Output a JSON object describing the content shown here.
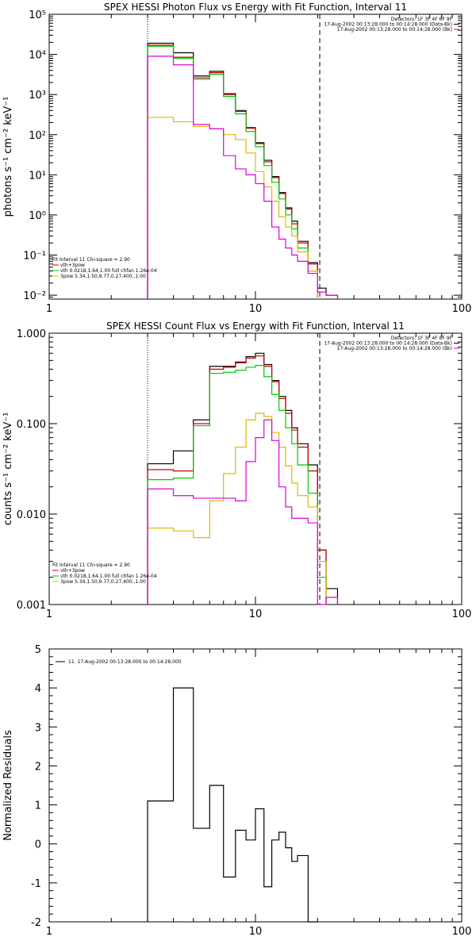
{
  "chart_data": [
    {
      "type": "line",
      "title": "SPEX HESSI Photon Flux vs Energy with Fit Function, Interval 11",
      "xlabel": "",
      "ylabel": "photons s⁻¹ cm⁻² keV⁻¹",
      "xscale": "log",
      "yscale": "log",
      "xlim": [
        1,
        100
      ],
      "ylim": [
        0.008,
        100000
      ],
      "x_ticks": [
        "1",
        "10",
        "100"
      ],
      "y_ticks": [
        "10⁻²",
        "10⁻¹",
        "10⁰",
        "10¹",
        "10²",
        "10³",
        "10⁴",
        "10⁵"
      ],
      "x_edges": [
        3,
        4,
        5,
        6,
        7,
        8,
        9,
        10,
        11,
        12,
        13,
        14,
        15,
        16,
        18,
        20,
        22,
        25
      ],
      "series": [
        {
          "name": "data",
          "color": "#000000",
          "values": [
            19000,
            11000,
            2900,
            3800,
            1050,
            400,
            150,
            63,
            23,
            9,
            3.6,
            1.5,
            0.7,
            0.22,
            0.065,
            0.015,
            0.01
          ]
        },
        {
          "name": "vth+3pow",
          "color": "#cc0000",
          "values": [
            17000,
            8500,
            2600,
            3500,
            1000,
            380,
            145,
            60,
            21,
            8.5,
            3.4,
            1.4,
            0.6,
            0.2,
            0.06
          ]
        },
        {
          "name": "vth 0.0218,1.64,1.00  full chfan 1.26e-04",
          "color": "#00cc00",
          "values": [
            16000,
            8000,
            2400,
            3200,
            900,
            330,
            120,
            50,
            17,
            6.5,
            2.5,
            1.0,
            0.45,
            0.15,
            0.04
          ]
        },
        {
          "name": "3pow 5.34,1.50,9.77,0.27,400.,1.00",
          "color": "#ddbb00",
          "values": [
            270,
            210,
            160,
            140,
            100,
            75,
            35,
            12,
            5,
            2.2,
            0.9,
            0.5,
            0.3,
            0.12,
            0.04
          ]
        },
        {
          "name": "bkg",
          "color": "#dd00dd",
          "values": [
            9000,
            5500,
            180,
            140,
            30,
            14,
            10,
            6,
            2.2,
            0.5,
            0.25,
            0.15,
            0.1,
            0.07,
            0.035,
            0.012,
            0.01
          ]
        }
      ],
      "vlines": [
        {
          "x": 3,
          "style": "dotted"
        },
        {
          "x": 20.5,
          "style": "dashed"
        }
      ],
      "legend_top": [
        "Detectors: 1F 3F 4F 6F 9F",
        "17-Aug-2002 00:13:28.000 to 00:14:28.000 (Data-Bk)",
        "17-Aug-2002 00:13:28.000 to 00:14:28.000 (Bk)"
      ],
      "legend_bottom": [
        "Fit Interval 11    Chi-square = 2.90",
        "vth+3pow",
        "vth 0.0218,1.64,1.00  full chfan 1.26e-04",
        "3pow 5.34,1.50,9.77,0.27,400.,1.00"
      ]
    },
    {
      "type": "line",
      "title": "SPEX HESSI Count Flux vs Energy with Fit Function, Interval 11",
      "xlabel": "",
      "ylabel": "counts s⁻¹ cm⁻² keV⁻¹",
      "xscale": "log",
      "yscale": "log",
      "xlim": [
        1,
        100
      ],
      "ylim": [
        0.001,
        1.0
      ],
      "x_ticks": [
        "1",
        "10",
        "100"
      ],
      "y_ticks": [
        "0.001",
        "0.010",
        "0.100",
        "1.000"
      ],
      "x_edges": [
        3,
        4,
        5,
        6,
        7,
        8,
        9,
        10,
        11,
        12,
        13,
        14,
        15,
        16,
        18,
        20,
        22,
        25
      ],
      "series": [
        {
          "name": "data",
          "color": "#000000",
          "values": [
            0.036,
            0.05,
            0.11,
            0.43,
            0.43,
            0.48,
            0.55,
            0.6,
            0.45,
            0.3,
            0.2,
            0.14,
            0.09,
            0.06,
            0.035,
            0.004,
            0.0015
          ]
        },
        {
          "name": "vth+3pow",
          "color": "#cc0000",
          "values": [
            0.031,
            0.03,
            0.1,
            0.4,
            0.42,
            0.47,
            0.53,
            0.56,
            0.43,
            0.29,
            0.19,
            0.13,
            0.085,
            0.055,
            0.03,
            0.004
          ]
        },
        {
          "name": "vth",
          "color": "#00cc00",
          "values": [
            0.024,
            0.025,
            0.095,
            0.36,
            0.37,
            0.39,
            0.42,
            0.44,
            0.33,
            0.21,
            0.14,
            0.09,
            0.06,
            0.035,
            0.017,
            0.002
          ]
        },
        {
          "name": "3pow",
          "color": "#ddbb00",
          "values": [
            0.007,
            0.0065,
            0.0055,
            0.014,
            0.028,
            0.055,
            0.11,
            0.13,
            0.12,
            0.08,
            0.055,
            0.034,
            0.022,
            0.016,
            0.012,
            0.003
          ]
        },
        {
          "name": "bkg",
          "color": "#dd00dd",
          "values": [
            0.019,
            0.016,
            0.015,
            0.015,
            0.015,
            0.014,
            0.038,
            0.07,
            0.11,
            0.065,
            0.02,
            0.012,
            0.009,
            0.009,
            0.008,
            0.001,
            0.0012
          ]
        }
      ],
      "vlines": [
        {
          "x": 3,
          "style": "dotted"
        },
        {
          "x": 20.5,
          "style": "dashed"
        }
      ],
      "legend_top": [
        "Detectors: 1F 3F 4F 6F 9F",
        "17-Aug-2002 00:13:28.000 to 00:14:28.000 (Data-Bk)",
        "17-Aug-2002 00:13:28.000 to 00:14:28.000 (Bk)"
      ],
      "legend_bottom": [
        "Fit Interval 11    Chi-square = 2.90",
        "vth+3pow",
        "vth 0.0218,1.64,1.00  full chfan 1.26e-04",
        "3pow 5.34,1.50,9.77,0.27,400.,1.00"
      ]
    },
    {
      "type": "line",
      "title": "",
      "xlabel": "",
      "ylabel": "Normalized Residuals",
      "xscale": "log",
      "yscale": "linear",
      "xlim": [
        1,
        100
      ],
      "ylim": [
        -2,
        5
      ],
      "x_ticks": [
        "1",
        "10",
        "100"
      ],
      "y_ticks": [
        "-2",
        "-1",
        "0",
        "1",
        "2",
        "3",
        "4",
        "5"
      ],
      "x_edges": [
        3,
        4,
        5,
        6,
        7,
        8,
        9,
        10,
        11,
        12,
        13,
        14,
        15,
        16,
        18,
        20
      ],
      "series": [
        {
          "name": "11. 17-Aug-2002 00:13:28.000 to 00:14:28.000",
          "color": "#000000",
          "values": [
            1.1,
            4.0,
            0.4,
            1.5,
            -0.85,
            0.35,
            0.1,
            0.9,
            -1.1,
            0.1,
            0.3,
            -0.1,
            -0.45,
            -0.3,
            -2.0
          ]
        }
      ],
      "legend_top": [
        "11. 17-Aug-2002 00:13:28.000 to 00:14:28.000"
      ]
    }
  ]
}
